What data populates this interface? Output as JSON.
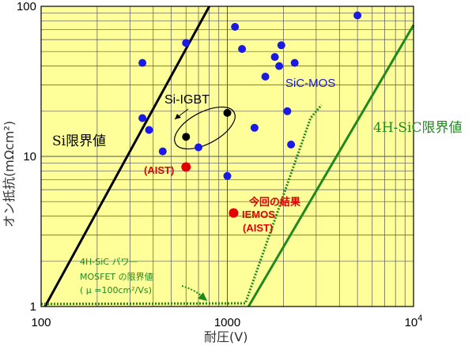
{
  "chart_data": {
    "type": "scatter",
    "x_scale": "log",
    "y_scale": "log",
    "xlim": [
      100,
      10000
    ],
    "ylim": [
      1,
      100
    ],
    "xlabel": "耐圧(V)",
    "ylabel": "オン抵抗(mΩcm²)",
    "x_ticks": [
      {
        "value": 100,
        "label": "100",
        "sup": ""
      },
      {
        "value": 1000,
        "label": "1000",
        "sup": ""
      },
      {
        "value": 10000,
        "label": "10",
        "sup": "4"
      }
    ],
    "y_ticks": [
      {
        "value": 1,
        "label": "1"
      },
      {
        "value": 10,
        "label": "10"
      },
      {
        "value": 100,
        "label": "100"
      }
    ],
    "grid": true,
    "background_color": "#ffff99",
    "series": [
      {
        "name": "SiC-MOS",
        "color": "#1a1ae6",
        "points": [
          {
            "x": 350,
            "y": 42
          },
          {
            "x": 350,
            "y": 18
          },
          {
            "x": 380,
            "y": 15
          },
          {
            "x": 450,
            "y": 10.8
          },
          {
            "x": 600,
            "y": 57
          },
          {
            "x": 700,
            "y": 11.5
          },
          {
            "x": 1000,
            "y": 7.4
          },
          {
            "x": 1100,
            "y": 73
          },
          {
            "x": 1200,
            "y": 52
          },
          {
            "x": 1400,
            "y": 15.5
          },
          {
            "x": 1600,
            "y": 34
          },
          {
            "x": 1800,
            "y": 46
          },
          {
            "x": 1900,
            "y": 40
          },
          {
            "x": 1950,
            "y": 55
          },
          {
            "x": 2100,
            "y": 20
          },
          {
            "x": 2200,
            "y": 12
          },
          {
            "x": 2300,
            "y": 42
          },
          {
            "x": 5000,
            "y": 87
          }
        ]
      },
      {
        "name": "Si-IGBT",
        "color": "#000000",
        "points": [
          {
            "x": 600,
            "y": 13.5
          },
          {
            "x": 1000,
            "y": 19.5
          }
        ]
      },
      {
        "name": "AIST",
        "color": "#e00000",
        "points": [
          {
            "x": 600,
            "y": 8.5
          },
          {
            "x": 1080,
            "y": 4.2
          }
        ]
      }
    ],
    "lines": [
      {
        "name": "Si限界値",
        "color": "#000000",
        "style": "solid",
        "points": [
          [
            105,
            1
          ],
          [
            800,
            100
          ]
        ]
      },
      {
        "name": "4H-SiC限界値",
        "color": "#1e8a1e",
        "style": "solid",
        "points": [
          [
            1300,
            1
          ],
          [
            10000,
            75
          ]
        ]
      },
      {
        "name": "4H-SiC パワーMOSFETの限界値",
        "color": "#1e8a1e",
        "style": "dotted",
        "points": [
          [
            100,
            1.04
          ],
          [
            1250,
            1.05
          ],
          [
            2800,
            18
          ],
          [
            3200,
            22
          ]
        ]
      }
    ],
    "annotations": {
      "si_limit": "Si限界値",
      "sic_limit": "4H-SiC限界値",
      "sic_mos": "SiC-MOS",
      "si_igbt": "Si-IGBT",
      "aist_prior": "(AIST)",
      "this_result_line1": "今回の結果",
      "this_result_line2": "IEMOS",
      "this_result_line3": "(AIST)",
      "mosfet_limit_line1": "4H-SiC パワー",
      "mosfet_limit_line2": "MOSFET の限界値",
      "mosfet_limit_line3": "( μ =100cm²/Vs)"
    }
  }
}
